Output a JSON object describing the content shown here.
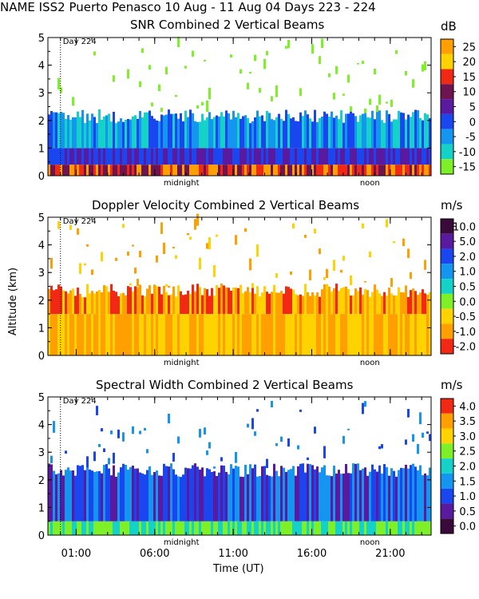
{
  "title": "NAME ISS2 Puerto Penasco  10 Aug - 11 Aug 04 Days 223 - 224",
  "chart_data": {
    "type": "heatmap",
    "xlabel": "Time (UT)",
    "ylabel": "Altitude (km)",
    "x_ticks": [
      "01:00",
      "06:00",
      "11:00",
      "16:00",
      "21:00"
    ],
    "x_tick_hours": [
      1,
      6,
      11,
      16,
      21
    ],
    "x_range_hours": [
      -0.8,
      23.6
    ],
    "day_marker": {
      "label": "Day 224",
      "hour": 0
    },
    "time_annotations": [
      {
        "label": "midnight",
        "hour": 7.7
      },
      {
        "label": "noon",
        "hour": 19.7
      }
    ],
    "y_ticks": [
      0,
      1,
      2,
      3,
      4,
      5
    ],
    "ylim": [
      0,
      5
    ],
    "panels": [
      {
        "title": "SNR Combined 2 Vertical Beams",
        "unit": "dB",
        "colorbar": {
          "labels": [
            "25",
            "20",
            "15",
            "10",
            "5",
            "0",
            "-5",
            "-10",
            "-15"
          ],
          "colors": [
            "#ffa000",
            "#ffd200",
            "#f02814",
            "#6e1450",
            "#5a1aa0",
            "#1a46f0",
            "#1496f0",
            "#14d2c8",
            "#7ef028"
          ]
        },
        "layers": [
          {
            "band": "near-surface",
            "min_km": 0.0,
            "max_km": 0.4,
            "colors": [
              "#f02814",
              "#ffa000",
              "#6e1450"
            ]
          },
          {
            "band": "lower",
            "min_km": 0.4,
            "max_km": 1.0,
            "colors": [
              "#1a46f0",
              "#5a1aa0"
            ]
          },
          {
            "band": "middle",
            "min_km": 1.0,
            "max_km": 2.2,
            "colors": [
              "#1496f0",
              "#14d2c8",
              "#1a46f0"
            ]
          },
          {
            "band": "upper",
            "min_km": 2.2,
            "max_km": 5.0,
            "colors": [
              "#7ef028"
            ]
          }
        ]
      },
      {
        "title": "Doppler Velocity Combined 2 Vertical Beams",
        "unit": "m/s",
        "colorbar": {
          "labels": [
            "10.0",
            "5.0",
            "2.0",
            "1.0",
            "0.5",
            "0.0",
            "-0.5",
            "-1.0",
            "-2.0"
          ],
          "colors": [
            "#3a0a3a",
            "#5a1aa0",
            "#1a46f0",
            "#1496f0",
            "#14d2c8",
            "#7ef028",
            "#ffd200",
            "#ffa000",
            "#f02814"
          ]
        },
        "layers": [
          {
            "band": "lower",
            "min_km": 0.0,
            "max_km": 1.5,
            "colors": [
              "#ffd200",
              "#ffa000"
            ]
          },
          {
            "band": "middle",
            "min_km": 1.5,
            "max_km": 2.4,
            "colors": [
              "#ffa000",
              "#f02814",
              "#ffd200"
            ]
          },
          {
            "band": "upper",
            "min_km": 2.4,
            "max_km": 5.0,
            "colors": [
              "#ffd200",
              "#ffa000"
            ]
          }
        ]
      },
      {
        "title": "Spectral Width Combined 2 Vertical Beams",
        "unit": "m/s",
        "colorbar": {
          "labels": [
            "4.0",
            "3.5",
            "3.0",
            "2.5",
            "2.0",
            "1.5",
            "1.0",
            "0.5",
            "0.0"
          ],
          "colors": [
            "#f02814",
            "#ffa000",
            "#ffd200",
            "#7ef028",
            "#14d2c8",
            "#1496f0",
            "#1a46f0",
            "#5a1aa0",
            "#3a0a3a"
          ]
        },
        "layers": [
          {
            "band": "near-surface",
            "min_km": 0.0,
            "max_km": 0.5,
            "colors": [
              "#14d2c8",
              "#7ef028"
            ]
          },
          {
            "band": "middle",
            "min_km": 0.5,
            "max_km": 2.4,
            "colors": [
              "#1a46f0",
              "#1496f0",
              "#5a1aa0"
            ]
          },
          {
            "band": "upper",
            "min_km": 2.4,
            "max_km": 5.0,
            "colors": [
              "#1a46f0",
              "#1496f0"
            ]
          }
        ]
      }
    ]
  }
}
